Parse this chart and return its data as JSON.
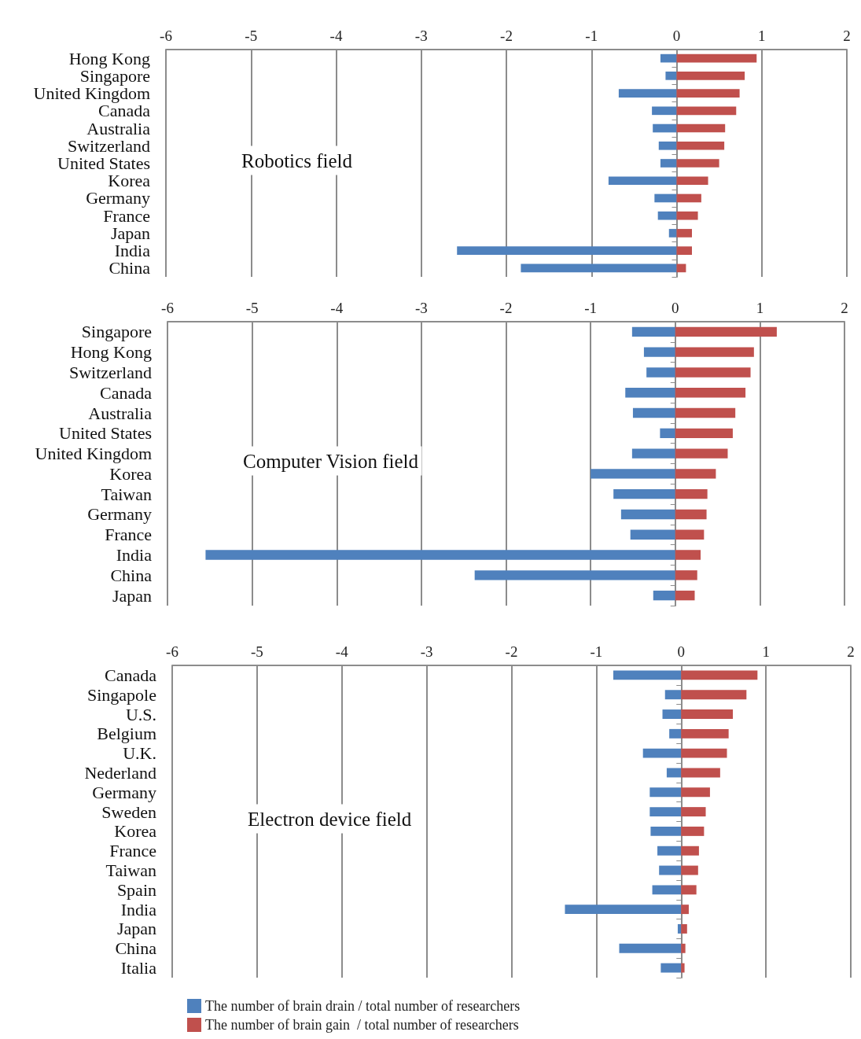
{
  "chart_data": [
    {
      "type": "bar",
      "orientation": "horizontal",
      "stacked": true,
      "title": "Robotics field",
      "categories": [
        "Hong Kong",
        "Singapore",
        "United Kingdom",
        "Canada",
        "Australia",
        "Switzerland",
        "United States",
        "Korea",
        "Germany",
        "France",
        "Japan",
        "India",
        "China"
      ],
      "series": [
        {
          "color": "#4f81bd",
          "values": [
            -0.19,
            -0.13,
            -0.68,
            -0.29,
            -0.28,
            -0.21,
            -0.19,
            -0.8,
            -0.26,
            -0.22,
            -0.09,
            -2.58,
            -1.83
          ]
        },
        {
          "color": "#c0504d",
          "values": [
            0.94,
            0.8,
            0.74,
            0.7,
            0.57,
            0.56,
            0.5,
            0.37,
            0.29,
            0.25,
            0.18,
            0.18,
            0.11
          ]
        }
      ],
      "xlim": [
        -6,
        2
      ],
      "xticks": [
        -6,
        -5,
        -4,
        -3,
        -2,
        -1,
        0,
        1,
        2
      ],
      "grid": "x",
      "legend": false
    },
    {
      "type": "bar",
      "orientation": "horizontal",
      "stacked": true,
      "title": "Computer Vision field",
      "categories": [
        "Singapore",
        "Hong Kong",
        "Switzerland",
        "Canada",
        "Australia",
        "United States",
        "United Kingdom",
        "Korea",
        "Taiwan",
        "Germany",
        "France",
        "India",
        "China",
        "Japan"
      ],
      "series": [
        {
          "color": "#4f81bd",
          "values": [
            -0.51,
            -0.37,
            -0.34,
            -0.59,
            -0.5,
            -0.18,
            -0.51,
            -1.0,
            -0.73,
            -0.64,
            -0.53,
            -5.55,
            -2.37,
            -0.26
          ]
        },
        {
          "color": "#c0504d",
          "values": [
            1.2,
            0.93,
            0.89,
            0.83,
            0.71,
            0.68,
            0.62,
            0.48,
            0.38,
            0.37,
            0.34,
            0.3,
            0.26,
            0.23
          ]
        }
      ],
      "xlim": [
        -6,
        2
      ],
      "xticks": [
        -6,
        -5,
        -4,
        -3,
        -2,
        -1,
        0,
        1,
        2
      ],
      "grid": "x",
      "legend": false
    },
    {
      "type": "bar",
      "orientation": "horizontal",
      "stacked": true,
      "title": "Electron device field",
      "categories": [
        "Canada",
        "Singapole",
        "U.S.",
        "Belgium",
        "U.K.",
        "Nederland",
        "Germany",
        "Sweden",
        "Korea",
        "France",
        "Taiwan",
        "Spain",
        "India",
        "Japan",
        "China",
        "Italia"
      ],
      "series": [
        {
          "name": "The number of brain drain / total number of researchers",
          "color": "#4f81bd",
          "values": [
            -0.8,
            -0.19,
            -0.22,
            -0.14,
            -0.45,
            -0.17,
            -0.37,
            -0.37,
            -0.36,
            -0.28,
            -0.26,
            -0.34,
            -1.37,
            -0.04,
            -0.73,
            -0.24
          ]
        },
        {
          "name": "The number of brain gain  / total number of researchers",
          "color": "#c0504d",
          "values": [
            0.9,
            0.77,
            0.61,
            0.56,
            0.54,
            0.46,
            0.34,
            0.29,
            0.27,
            0.21,
            0.2,
            0.18,
            0.09,
            0.07,
            0.05,
            0.04
          ]
        }
      ],
      "xlim": [
        -6,
        2
      ],
      "xticks": [
        -6,
        -5,
        -4,
        -3,
        -2,
        -1,
        0,
        1,
        2
      ],
      "grid": "x",
      "legend": "bottom left"
    }
  ]
}
